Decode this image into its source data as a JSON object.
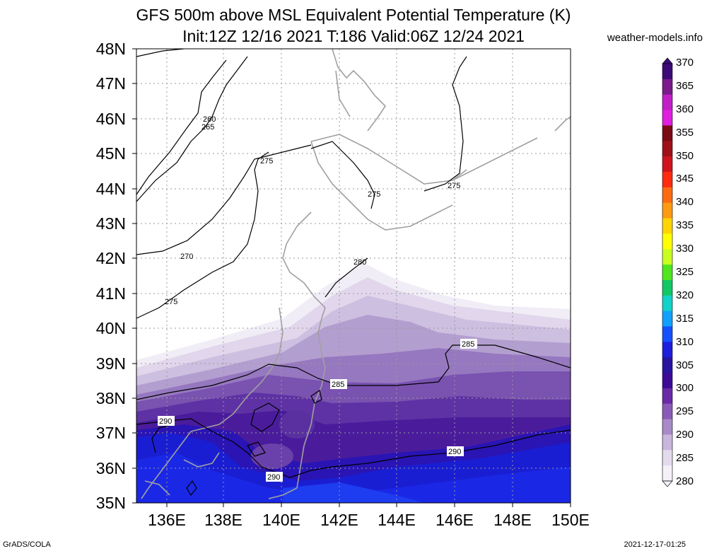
{
  "title": {
    "line1": "GFS 500m above MSL Equivalent Potential Temperature (K)",
    "line2": "Init:12Z 12/16 2021 T:186 Valid:06Z 12/24 2021"
  },
  "site_label": "weather-models.info",
  "lat_labels": [
    "48N",
    "47N",
    "46N",
    "45N",
    "44N",
    "43N",
    "42N",
    "41N",
    "40N",
    "39N",
    "38N",
    "37N",
    "36N",
    "35N"
  ],
  "lon_labels": [
    "136E",
    "138E",
    "140E",
    "142E",
    "144E",
    "146E",
    "148E",
    "150E"
  ],
  "colorbar": {
    "labels": [
      "370",
      "365",
      "360",
      "355",
      "350",
      "345",
      "340",
      "335",
      "330",
      "325",
      "320",
      "315",
      "310",
      "305",
      "300",
      "295",
      "290",
      "285",
      "280"
    ],
    "colors": [
      "#3c0a78",
      "#7a1a8c",
      "#c21ec8",
      "#e01ee0",
      "#7a0a14",
      "#a01018",
      "#d0141c",
      "#ff2a10",
      "#ff6a10",
      "#ff9a10",
      "#ffd400",
      "#ffff00",
      "#c8ff1e",
      "#50e61e",
      "#10c864",
      "#10d2c8",
      "#10a0ff",
      "#1450ff",
      "#1e1edc",
      "#2814a0",
      "#3c0a96",
      "#6a2aa8",
      "#8a5ab8",
      "#a88ac8",
      "#c8b6dc",
      "#e4daee",
      "#f4f0f8"
    ]
  },
  "contour_labels": [
    "260",
    "265",
    "275",
    "275",
    "275",
    "270",
    "275",
    "280",
    "285",
    "285",
    "290",
    "290",
    "290"
  ],
  "footer": {
    "left": "GrADS/COLA",
    "right": "2021-12-17-01:25"
  }
}
